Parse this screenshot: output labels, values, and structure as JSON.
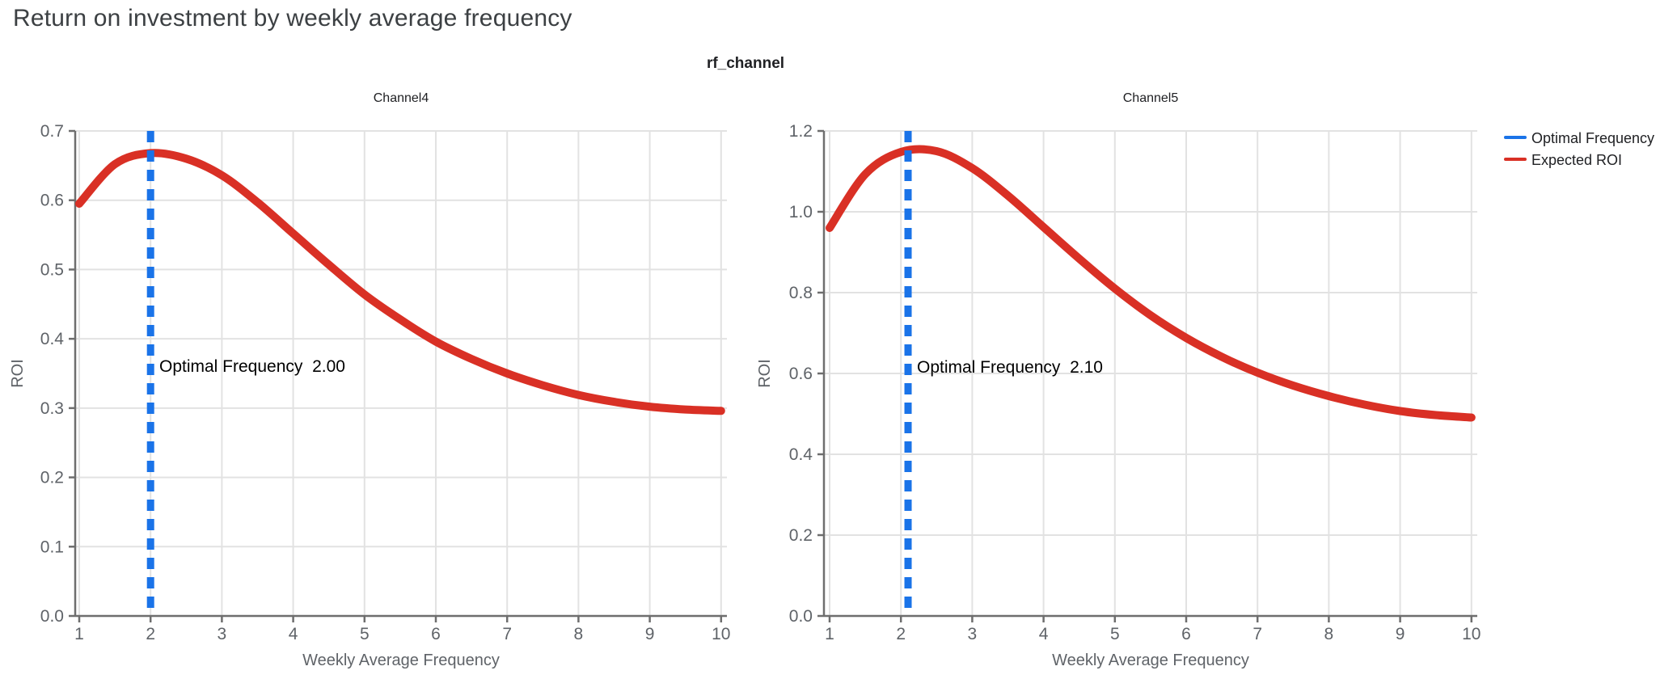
{
  "page": {
    "title": "Return on investment by weekly average frequency"
  },
  "figure": {
    "title": "rf_channel"
  },
  "legend": {
    "items": [
      {
        "label": "Optimal Frequency",
        "color": "#1a73e8"
      },
      {
        "label": "Expected ROI",
        "color": "#d93025"
      }
    ]
  },
  "colors": {
    "optimal_frequency_line": "#1a73e8",
    "expected_roi_line": "#d93025",
    "axis_line": "#6e6e6e",
    "gridline": "#e2e2e2",
    "tick_label": "#5f6368",
    "page_title": "#3c4043",
    "annotation": "#000000"
  },
  "chart_data": [
    {
      "type": "line",
      "title": "Channel4",
      "xlabel": "Weekly Average Frequency",
      "ylabel": "ROI",
      "xlim": [
        1,
        10
      ],
      "ylim": [
        0,
        0.7
      ],
      "x_ticks": [
        "1",
        "2",
        "3",
        "4",
        "5",
        "6",
        "7",
        "8",
        "9",
        "10"
      ],
      "y_ticks": [
        "0.0",
        "0.1",
        "0.2",
        "0.3",
        "0.4",
        "0.5",
        "0.6",
        "0.7"
      ],
      "grid": true,
      "legend_position": "top-right-outside",
      "optimal_frequency": 2.0,
      "annotation": "Optimal Frequency  2.00",
      "series": [
        {
          "name": "Expected ROI",
          "x": [
            1,
            1.5,
            2,
            2.5,
            3,
            3.5,
            4,
            4.5,
            5,
            5.5,
            6,
            6.5,
            7,
            7.5,
            8,
            8.5,
            9,
            9.5,
            10
          ],
          "values": [
            0.595,
            0.652,
            0.668,
            0.66,
            0.636,
            0.597,
            0.552,
            0.507,
            0.464,
            0.428,
            0.396,
            0.371,
            0.35,
            0.333,
            0.319,
            0.309,
            0.302,
            0.298,
            0.296
          ]
        }
      ]
    },
    {
      "type": "line",
      "title": "Channel5",
      "xlabel": "Weekly Average Frequency",
      "ylabel": "ROI",
      "xlim": [
        1,
        10
      ],
      "ylim": [
        0,
        1.2
      ],
      "x_ticks": [
        "1",
        "2",
        "3",
        "4",
        "5",
        "6",
        "7",
        "8",
        "9",
        "10"
      ],
      "y_ticks": [
        "0.0",
        "0.2",
        "0.4",
        "0.6",
        "0.8",
        "1.0",
        "1.2"
      ],
      "grid": true,
      "legend_position": "top-right-outside",
      "optimal_frequency": 2.1,
      "annotation": "Optimal Frequency  2.10",
      "series": [
        {
          "name": "Expected ROI",
          "x": [
            1,
            1.5,
            2,
            2.5,
            3,
            3.5,
            4,
            4.5,
            5,
            5.5,
            6,
            6.5,
            7,
            7.5,
            8,
            8.5,
            9,
            9.5,
            10
          ],
          "values": [
            0.96,
            1.093,
            1.148,
            1.15,
            1.108,
            1.04,
            0.962,
            0.884,
            0.81,
            0.744,
            0.688,
            0.641,
            0.602,
            0.57,
            0.544,
            0.523,
            0.507,
            0.497,
            0.491
          ]
        }
      ]
    }
  ]
}
